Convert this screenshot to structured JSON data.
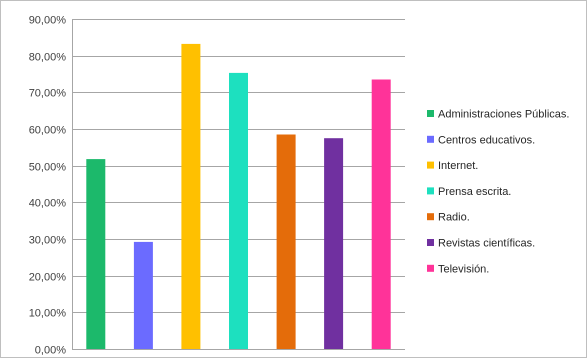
{
  "chart_data": {
    "type": "bar",
    "categories": [
      "Administraciones Públicas.",
      "Centros educativos.",
      "Internet.",
      "Prensa escrita.",
      "Radio.",
      "Revistas científicas.",
      "Televisión."
    ],
    "values": [
      51.8,
      29.2,
      83.2,
      75.3,
      58.5,
      57.5,
      73.5
    ],
    "colors": [
      "#1cb96b",
      "#6b6bff",
      "#ffc000",
      "#1de0bf",
      "#e46c0a",
      "#7030a0",
      "#ff3399"
    ],
    "ylim": [
      0,
      90
    ],
    "yticks": [
      "0,00%",
      "10,00%",
      "20,00%",
      "30,00%",
      "40,00%",
      "50,00%",
      "60,00%",
      "70,00%",
      "80,00%",
      "90,00%"
    ],
    "grid": true,
    "legend": "right",
    "title": "",
    "xlabel": "",
    "ylabel": ""
  }
}
